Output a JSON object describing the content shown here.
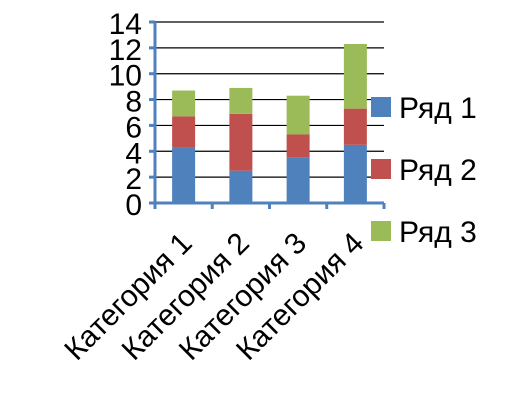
{
  "chart_data": {
    "type": "bar",
    "stacked": true,
    "categories": [
      "Категория 1",
      "Категория 2",
      "Категория 3",
      "Категория 4"
    ],
    "series": [
      {
        "name": "Ряд 1",
        "values": [
          4.3,
          2.5,
          3.5,
          4.5
        ],
        "color": "#4f81bd"
      },
      {
        "name": "Ряд 2",
        "values": [
          2.4,
          4.4,
          1.8,
          2.8
        ],
        "color": "#c0504d"
      },
      {
        "name": "Ряд 3",
        "values": [
          2.0,
          2.0,
          3.0,
          5.0
        ],
        "color": "#9bbb59"
      }
    ],
    "ylim": [
      0,
      14
    ],
    "yticks": [
      0,
      2,
      4,
      6,
      8,
      10,
      12,
      14
    ],
    "grid": true,
    "legend_position": "right",
    "axis_color": "#4f81bd",
    "grid_color": "#000000"
  }
}
